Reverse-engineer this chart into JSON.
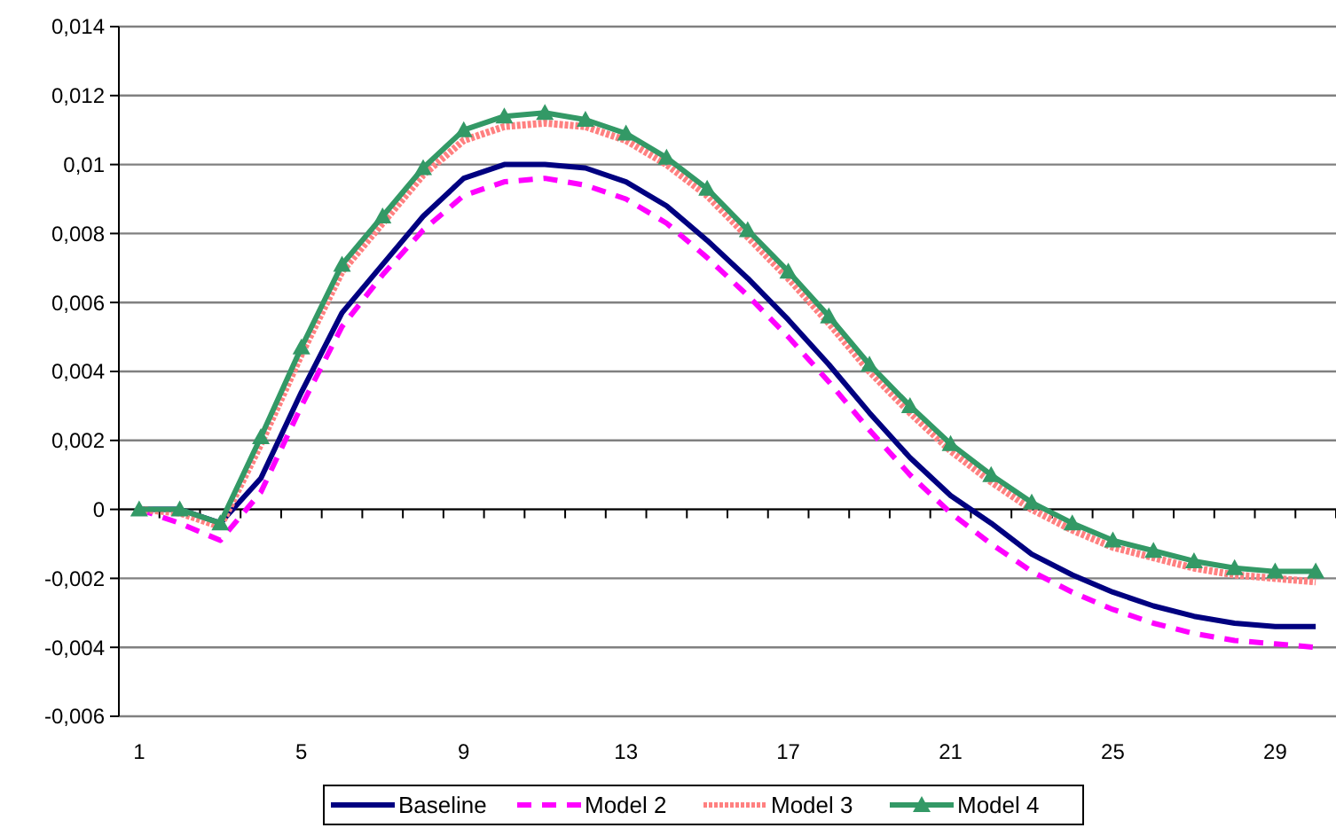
{
  "chart_data": {
    "type": "line",
    "categories": [
      "1",
      null,
      null,
      null,
      "5",
      null,
      null,
      null,
      "9",
      null,
      null,
      null,
      "13",
      null,
      null,
      null,
      "17",
      null,
      null,
      null,
      "21",
      null,
      null,
      null,
      "25",
      null,
      null,
      null,
      "29",
      null
    ],
    "series": [
      {
        "name": "Baseline",
        "color": "#000080",
        "line_style": "solid",
        "marker": "none",
        "values": [
          0,
          0,
          -0.0004,
          0.0009,
          0.0034,
          0.0057,
          0.0071,
          0.0085,
          0.0096,
          0.01,
          0.01,
          0.0099,
          0.0095,
          0.0088,
          0.0078,
          0.0067,
          0.0055,
          0.0042,
          0.0028,
          0.0015,
          0.0004,
          -0.0004,
          -0.0013,
          -0.0019,
          -0.0024,
          -0.0028,
          -0.0031,
          -0.0033,
          -0.0034,
          -0.0034
        ]
      },
      {
        "name": "Model 2",
        "color": "#ff00ff",
        "line_style": "dashed",
        "marker": "none",
        "values": [
          0,
          -0.0004,
          -0.0009,
          0.0005,
          0.003,
          0.0053,
          0.0068,
          0.0081,
          0.0091,
          0.0095,
          0.0096,
          0.0094,
          0.009,
          0.0083,
          0.0073,
          0.0062,
          0.005,
          0.0037,
          0.0023,
          0.001,
          -0.0001,
          -0.001,
          -0.0018,
          -0.0024,
          -0.0029,
          -0.0033,
          -0.0036,
          -0.0038,
          -0.0039,
          -0.004
        ]
      },
      {
        "name": "Model 3",
        "color": "#ff8080",
        "line_style": "dotted",
        "marker": "none",
        "values": [
          0,
          -0.0001,
          -0.0005,
          0.0019,
          0.0045,
          0.0069,
          0.0083,
          0.0097,
          0.0107,
          0.0111,
          0.0112,
          0.0111,
          0.0107,
          0.01,
          0.0091,
          0.0079,
          0.0067,
          0.0054,
          0.004,
          0.0028,
          0.0017,
          0.0008,
          0,
          -0.0006,
          -0.0011,
          -0.0014,
          -0.0017,
          -0.0019,
          -0.002,
          -0.0021
        ]
      },
      {
        "name": "Model 4",
        "color": "#339966",
        "line_style": "solid",
        "marker": "triangle",
        "values": [
          0,
          0,
          -0.0004,
          0.0021,
          0.0047,
          0.0071,
          0.0085,
          0.0099,
          0.011,
          0.0114,
          0.0115,
          0.0113,
          0.0109,
          0.0102,
          0.0093,
          0.0081,
          0.0069,
          0.0056,
          0.0042,
          0.003,
          0.0019,
          0.001,
          0.0002,
          -0.0004,
          -0.0009,
          -0.0012,
          -0.0015,
          -0.0017,
          -0.0018,
          -0.0018
        ]
      }
    ],
    "ylim": [
      -0.006,
      0.014
    ],
    "yticks": [
      {
        "value": -0.006,
        "label": "-0,006"
      },
      {
        "value": -0.004,
        "label": "-0,004"
      },
      {
        "value": -0.002,
        "label": "-0,002"
      },
      {
        "value": 0,
        "label": "0"
      },
      {
        "value": 0.002,
        "label": "0,002"
      },
      {
        "value": 0.004,
        "label": "0,004"
      },
      {
        "value": 0.006,
        "label": "0,006"
      },
      {
        "value": 0.008,
        "label": "0,008"
      },
      {
        "value": 0.01,
        "label": "0,01"
      },
      {
        "value": 0.012,
        "label": "0,012"
      },
      {
        "value": 0.014,
        "label": "0,014"
      }
    ],
    "grid": "y",
    "legend": "bottom"
  }
}
